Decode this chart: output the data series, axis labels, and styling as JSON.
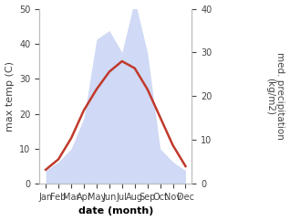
{
  "months": [
    "Jan",
    "Feb",
    "Mar",
    "Apr",
    "May",
    "Jun",
    "Jul",
    "Aug",
    "Sep",
    "Oct",
    "Nov",
    "Dec"
  ],
  "x": [
    1,
    2,
    3,
    4,
    5,
    6,
    7,
    8,
    9,
    10,
    11,
    12
  ],
  "precipitation": [
    3,
    5,
    8,
    15,
    33,
    35,
    30,
    42,
    30,
    8,
    5,
    3
  ],
  "max_temp": [
    4,
    7,
    13,
    21,
    27,
    32,
    35,
    33,
    27,
    19,
    11,
    5
  ],
  "temp_ylim": [
    0,
    50
  ],
  "precip_ylim": [
    0,
    40
  ],
  "temp_yticks": [
    0,
    10,
    20,
    30,
    40,
    50
  ],
  "precip_yticks": [
    0,
    10,
    20,
    30,
    40
  ],
  "area_color": "#aabbee",
  "area_alpha": 0.55,
  "line_color": "#c0392b",
  "line_width": 1.8,
  "xlabel": "date (month)",
  "ylabel_left": "max temp (C)",
  "ylabel_right": "med. precipitation\n(kg/m2)",
  "background_color": "#ffffff",
  "spine_color": "#bbbbbb",
  "tick_color": "#444444",
  "xlabel_fontsize": 8,
  "xlabel_fontweight": "bold",
  "ylabel_fontsize": 8,
  "tick_fontsize": 7,
  "ylabel_right_fontsize": 7.5,
  "figsize": [
    3.18,
    2.42
  ],
  "dpi": 100
}
